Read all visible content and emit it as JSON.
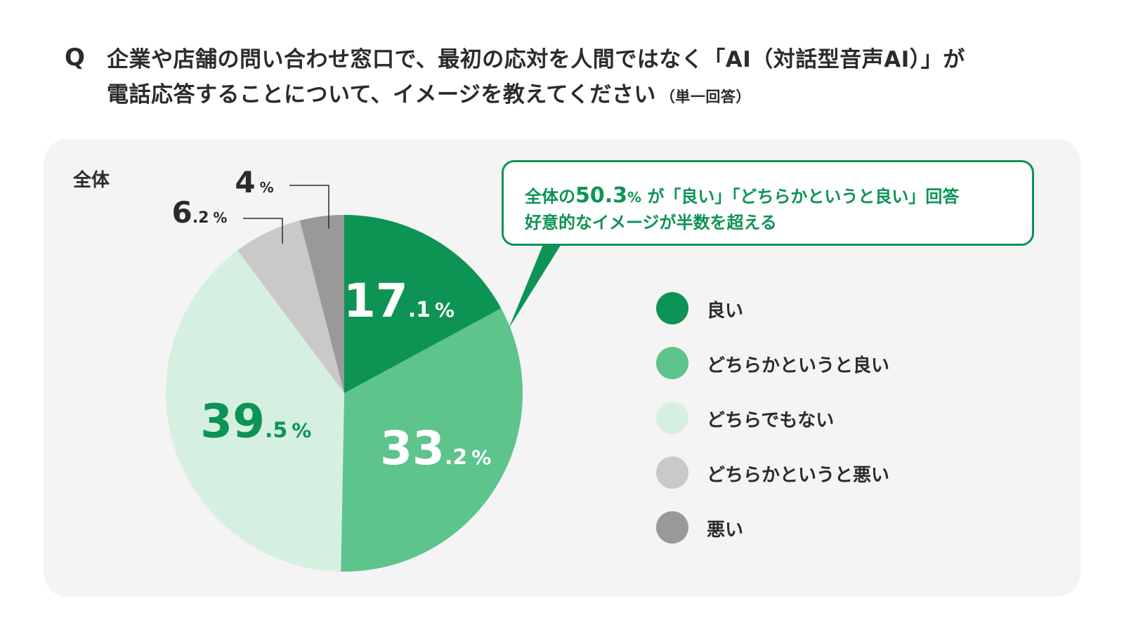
{
  "question": {
    "mark": "Q",
    "line1": "企業や店舗の問い合わせ窓口で、最初の応対を人間ではなく「AI（対話型音声AI）」が",
    "line2": "電話応答することについて、イメージを教えてください",
    "note": "（単一回答）"
  },
  "panel_label": "全体",
  "callout": {
    "prefix": "全体の",
    "value": "50.3",
    "percent": "%",
    "suffix": "が「良い」「どちらかというと良い」回答",
    "line2": "好意的なイメージが半数を超える"
  },
  "colors": {
    "accent": "#0d9354",
    "text": "#2b2b2b",
    "panel": "#f4f4f4"
  },
  "chart_data": {
    "type": "pie",
    "categories": [
      "良い",
      "どちらかというと良い",
      "どちらでもない",
      "どちらかというと悪い",
      "悪い"
    ],
    "values": [
      17.1,
      33.2,
      39.5,
      6.2,
      4
    ],
    "colors": [
      "#0d9354",
      "#5dc48b",
      "#d5f0e0",
      "#c9c9c9",
      "#999999"
    ],
    "value_labels": [
      {
        "int": "17",
        "dec": ".1",
        "unit": "%"
      },
      {
        "int": "33",
        "dec": ".2",
        "unit": "%"
      },
      {
        "int": "39",
        "dec": ".5",
        "unit": "%"
      },
      {
        "int": "6",
        "dec": ".2",
        "unit": "%"
      },
      {
        "int": "4",
        "dec": "",
        "unit": "%"
      }
    ],
    "legend_position": "right"
  }
}
